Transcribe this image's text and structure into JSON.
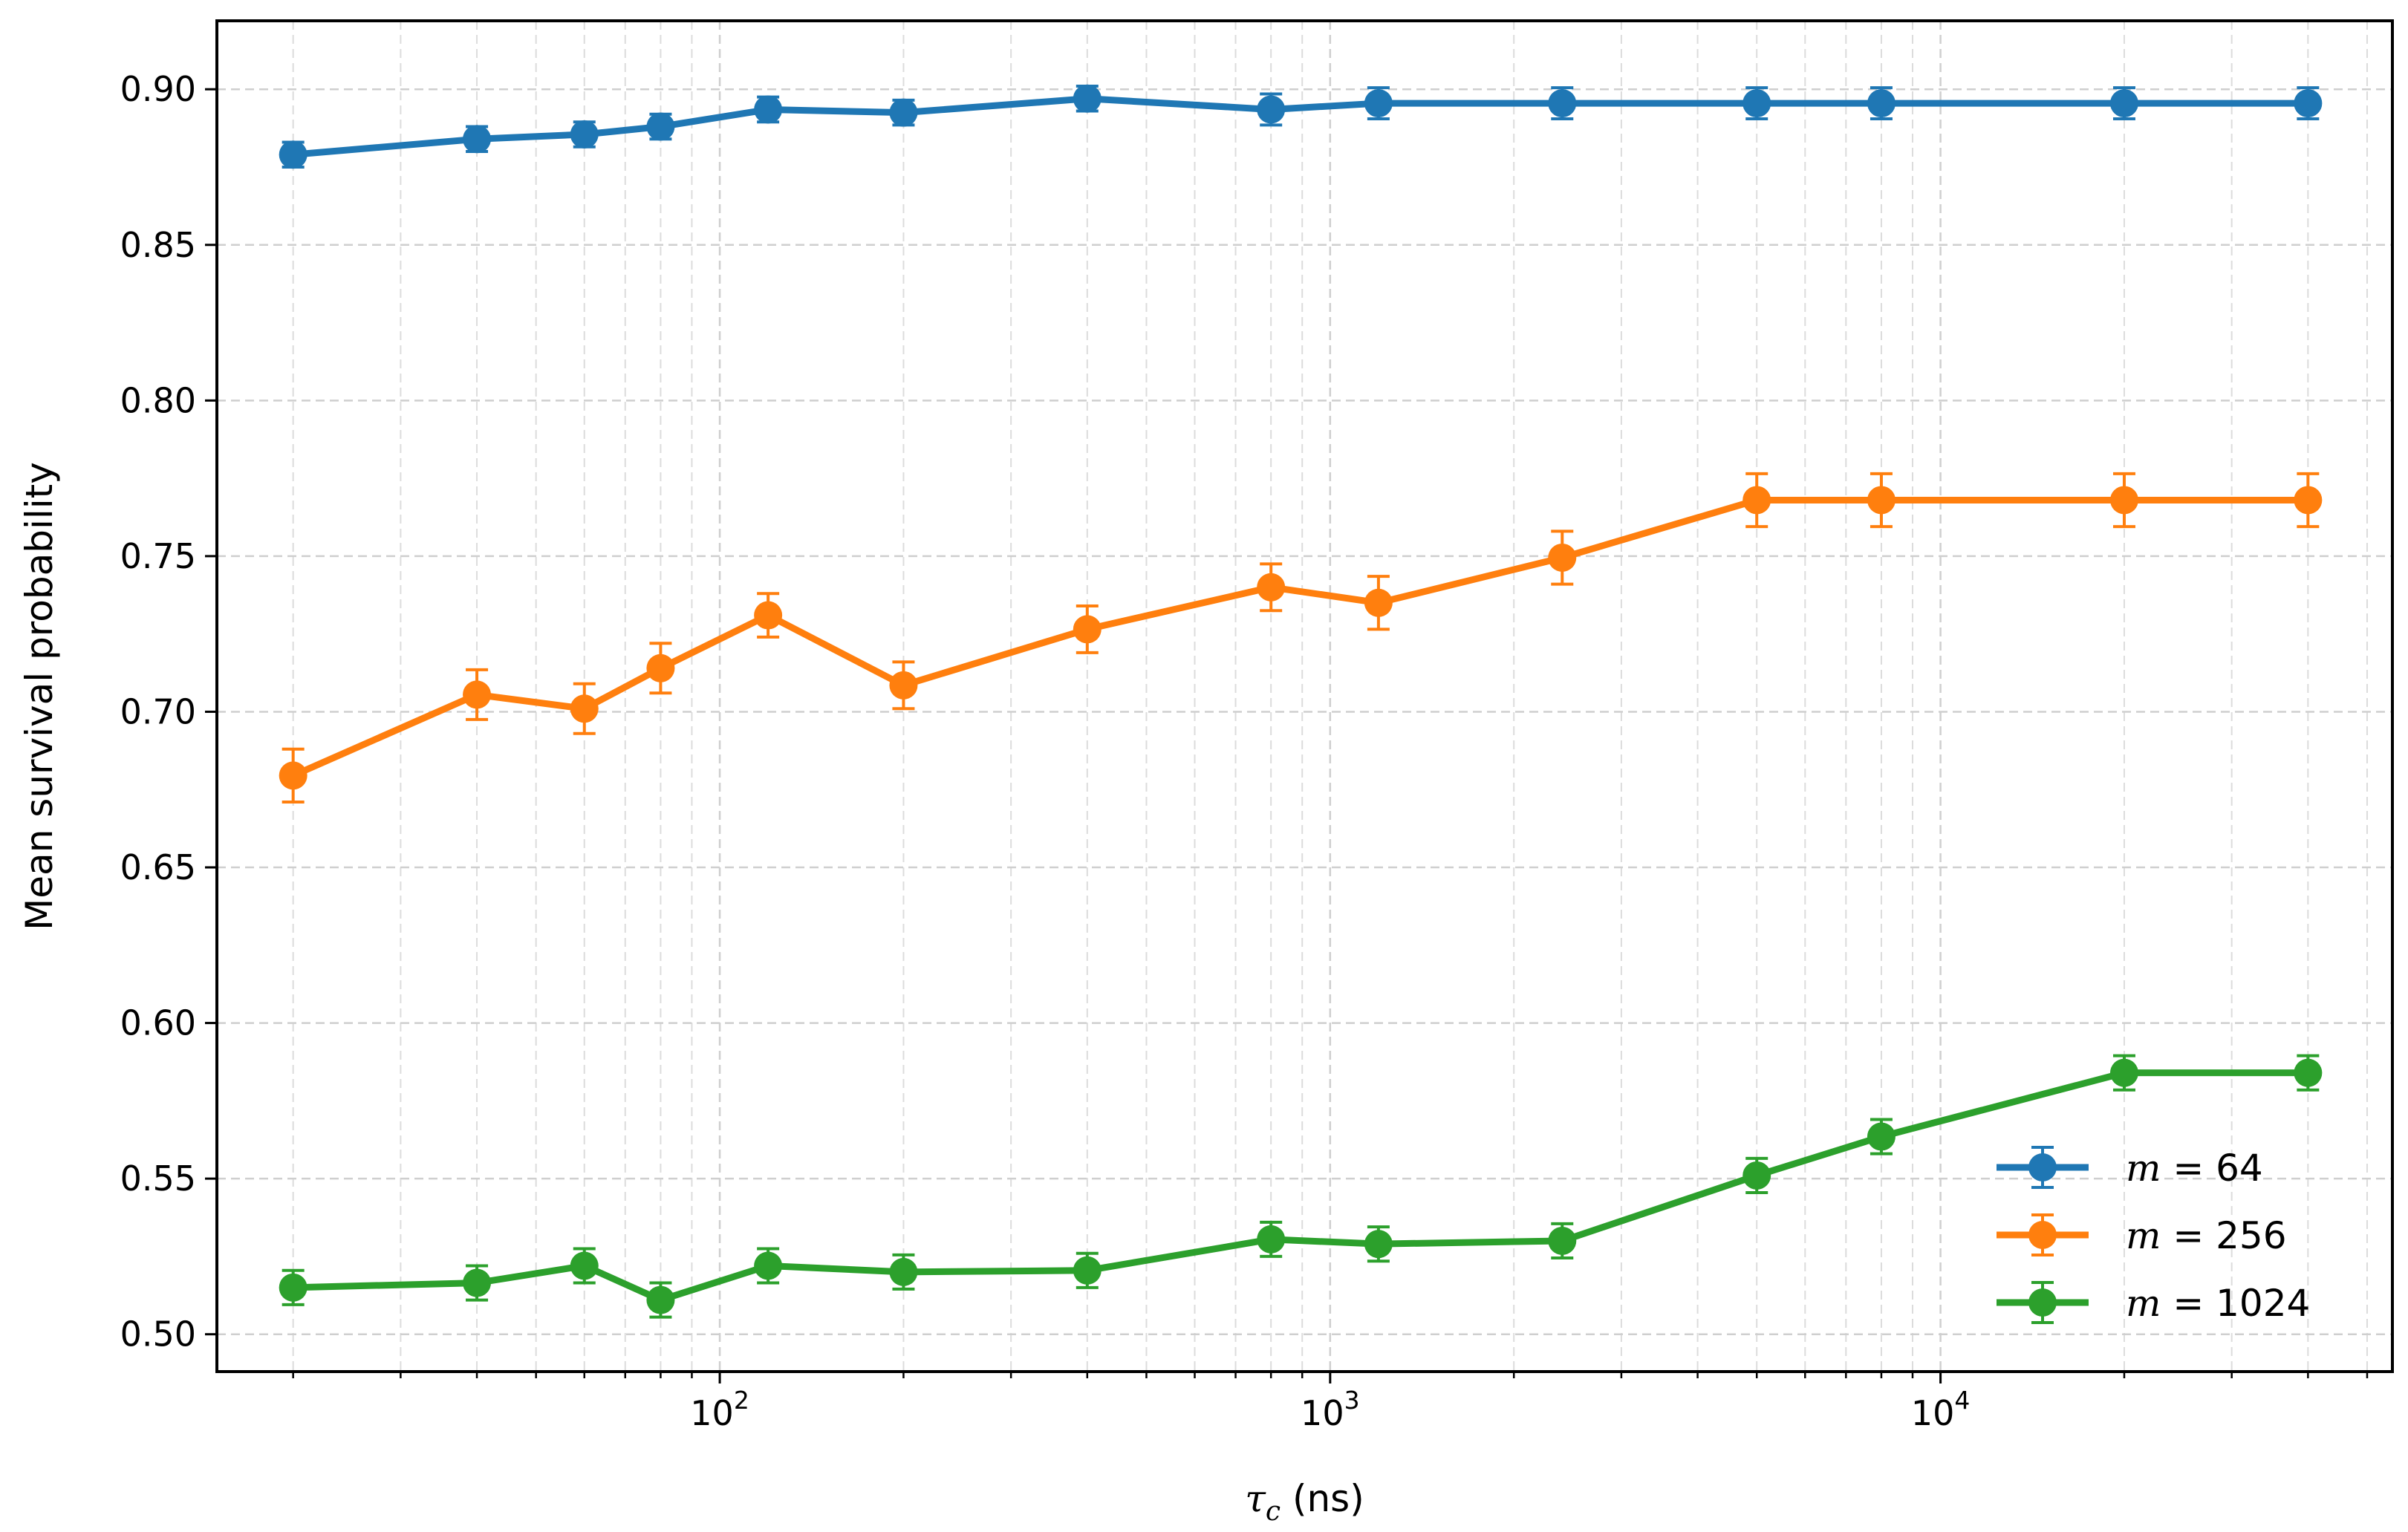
{
  "chart_data": {
    "type": "line",
    "xscale": "log",
    "xlabel": "τc (ns)",
    "ylabel": "Mean survival probability",
    "xlim": [
      15,
      55000
    ],
    "ylim": [
      0.488,
      0.922
    ],
    "xticks": [
      {
        "value": 100,
        "label_base": "10",
        "label_exp": "2"
      },
      {
        "value": 1000,
        "label_base": "10",
        "label_exp": "3"
      },
      {
        "value": 10000,
        "label_base": "10",
        "label_exp": "4"
      }
    ],
    "yticks": [
      "0.50",
      "0.55",
      "0.60",
      "0.65",
      "0.70",
      "0.75",
      "0.80",
      "0.85",
      "0.90"
    ],
    "grid": true,
    "legend_position": "lower-right",
    "x": [
      20,
      40,
      60,
      80,
      120,
      200,
      400,
      800,
      1200,
      2400,
      5000,
      8000,
      20000,
      40000
    ],
    "series": [
      {
        "name": "m = 64",
        "legend_var": "m",
        "legend_val": "= 64",
        "color": "#1f77b4",
        "values": [
          0.879,
          0.884,
          0.8855,
          0.888,
          0.8935,
          0.8925,
          0.897,
          0.8935,
          0.8955,
          0.8955,
          0.8955,
          0.8955,
          0.8955,
          0.8955
        ],
        "errors": [
          0.004,
          0.004,
          0.004,
          0.004,
          0.004,
          0.004,
          0.004,
          0.005,
          0.005,
          0.005,
          0.005,
          0.005,
          0.005,
          0.005
        ]
      },
      {
        "name": "m = 256",
        "legend_var": "m",
        "legend_val": "= 256",
        "color": "#ff7f0e",
        "values": [
          0.6795,
          0.7055,
          0.701,
          0.714,
          0.731,
          0.7085,
          0.7265,
          0.74,
          0.735,
          0.7495,
          0.768,
          0.768,
          0.768,
          0.768
        ],
        "errors": [
          0.0085,
          0.008,
          0.008,
          0.008,
          0.007,
          0.0075,
          0.0075,
          0.0075,
          0.0085,
          0.0085,
          0.0085,
          0.0085,
          0.0085,
          0.0085
        ]
      },
      {
        "name": "m = 1024",
        "legend_var": "m",
        "legend_val": "= 1024",
        "color": "#2ca02c",
        "values": [
          0.515,
          0.5165,
          0.522,
          0.511,
          0.522,
          0.52,
          0.5205,
          0.5305,
          0.529,
          0.53,
          0.551,
          0.5635,
          0.584,
          0.584
        ],
        "errors": [
          0.0055,
          0.0055,
          0.0055,
          0.0055,
          0.0055,
          0.0055,
          0.0055,
          0.0055,
          0.0055,
          0.0055,
          0.0055,
          0.0055,
          0.0055,
          0.0055
        ]
      }
    ]
  }
}
